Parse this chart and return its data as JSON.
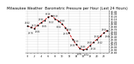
{
  "title": "Milwaukee Weather  Barometric Pressure per Hour (Last 24 Hours)",
  "hours": [
    0,
    1,
    2,
    3,
    4,
    5,
    6,
    7,
    8,
    9,
    10,
    11,
    12,
    13,
    14,
    15,
    16,
    17,
    18,
    19,
    20,
    21,
    22,
    23
  ],
  "pressure": [
    29.82,
    29.78,
    29.72,
    29.85,
    29.95,
    30.05,
    30.18,
    30.22,
    30.1,
    30.02,
    29.9,
    29.75,
    29.55,
    29.3,
    29.1,
    28.95,
    28.88,
    28.92,
    29.05,
    29.18,
    29.3,
    29.42,
    29.55,
    29.65
  ],
  "ylim": [
    28.75,
    30.45
  ],
  "ytick_min": 28.8,
  "ytick_max": 30.4,
  "ytick_step": 0.1,
  "line_color": "#cc0000",
  "marker_color": "#111111",
  "grid_color": "#bbbbbb",
  "bg_color": "#ffffff",
  "title_fontsize": 3.8,
  "tick_fontsize": 2.5,
  "label_fontsize": 2.0,
  "vgrid_every": 3
}
